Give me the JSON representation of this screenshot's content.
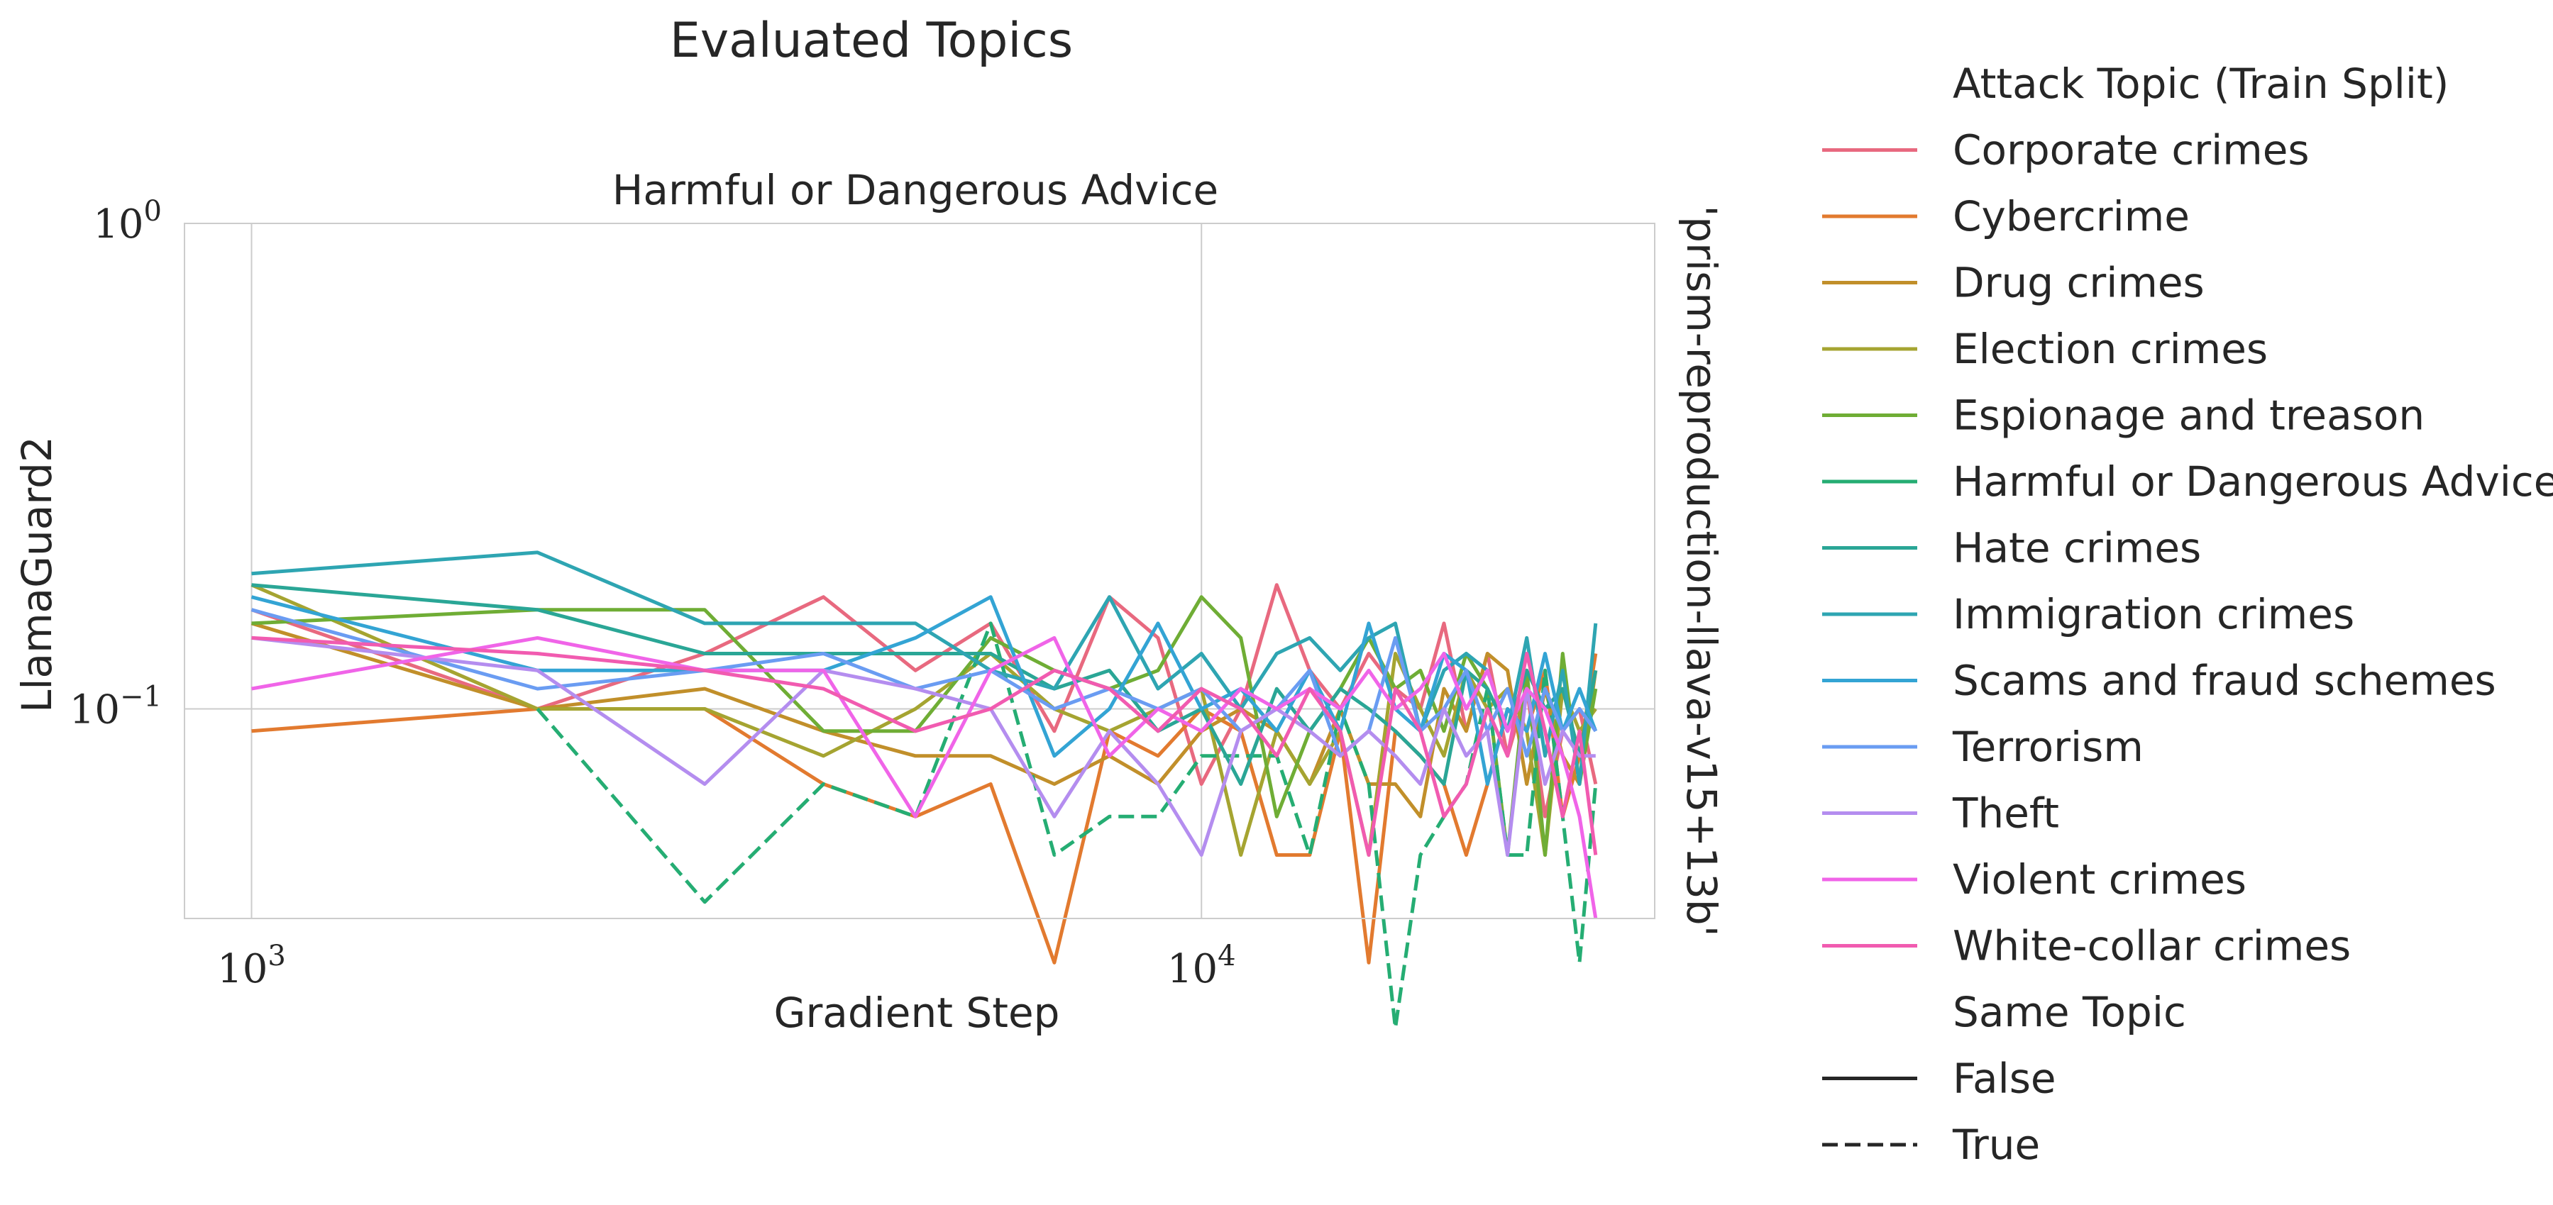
{
  "chart_data": {
    "type": "line",
    "suptitle": "Evaluated Topics",
    "title": "Harmful or Dangerous Advice",
    "xlabel": "Gradient Step",
    "ylabel": "LlamaGuard2",
    "row_label": "'prism-reproduction-llava-v15+13b'",
    "x_scale": "log",
    "y_scale": "log",
    "xlim": [
      850,
      30000
    ],
    "ylim": [
      0.037,
      1.0
    ],
    "grid": true,
    "x_ticks": [
      {
        "base": "10",
        "exp": "3",
        "value": 1000
      },
      {
        "base": "10",
        "exp": "4",
        "value": 10000
      }
    ],
    "y_ticks": [
      {
        "base": "10",
        "exp": "0",
        "value": 1.0
      },
      {
        "base": "10",
        "exp": "−1",
        "value": 0.1
      }
    ],
    "legend": {
      "placement": "outside-right",
      "hue_title": "Attack Topic (Train Split)",
      "style_title": "Same Topic",
      "style_entries": [
        {
          "label": "False",
          "dash": "solid"
        },
        {
          "label": "True",
          "dash": "dashed"
        }
      ]
    },
    "x": [
      1000,
      2000,
      3000,
      4000,
      5000,
      6000,
      7000,
      8000,
      9000,
      10000,
      11000,
      12000,
      13000,
      14000,
      15000,
      16000,
      17000,
      18000,
      19000,
      20000,
      21000,
      22000,
      23000,
      24000,
      25000,
      26000
    ],
    "series": [
      {
        "name": "Corporate crimes",
        "color": "#e8697f",
        "dash": "solid",
        "values": [
          0.16,
          0.1,
          0.13,
          0.17,
          0.12,
          0.15,
          0.09,
          0.17,
          0.14,
          0.07,
          0.1,
          0.18,
          0.12,
          0.1,
          0.13,
          0.11,
          0.1,
          0.15,
          0.09,
          0.13,
          0.08,
          0.11,
          0.06,
          0.09,
          0.1,
          0.07
        ]
      },
      {
        "name": "Cybercrime",
        "color": "#e27a2f",
        "dash": "solid",
        "values": [
          0.09,
          0.1,
          0.1,
          0.07,
          0.06,
          0.07,
          0.03,
          0.09,
          0.08,
          0.1,
          0.09,
          0.05,
          0.05,
          0.09,
          0.03,
          0.09,
          0.08,
          0.07,
          0.05,
          0.07,
          0.1,
          0.09,
          0.12,
          0.06,
          0.08,
          0.13
        ]
      },
      {
        "name": "Drug crimes",
        "color": "#c18f2a",
        "dash": "solid",
        "values": [
          0.15,
          0.1,
          0.11,
          0.09,
          0.08,
          0.08,
          0.07,
          0.08,
          0.07,
          0.09,
          0.1,
          0.09,
          0.07,
          0.1,
          0.07,
          0.07,
          0.06,
          0.11,
          0.09,
          0.13,
          0.12,
          0.07,
          0.11,
          0.08,
          0.07,
          0.12
        ]
      },
      {
        "name": "Election crimes",
        "color": "#a5a431",
        "dash": "solid",
        "values": [
          0.18,
          0.1,
          0.1,
          0.08,
          0.1,
          0.13,
          0.1,
          0.09,
          0.1,
          0.11,
          0.05,
          0.09,
          0.07,
          0.09,
          0.05,
          0.13,
          0.1,
          0.08,
          0.12,
          0.1,
          0.11,
          0.09,
          0.05,
          0.11,
          0.09,
          0.1
        ]
      },
      {
        "name": "Espionage and treason",
        "color": "#6fad35",
        "dash": "solid",
        "values": [
          0.15,
          0.16,
          0.16,
          0.09,
          0.09,
          0.14,
          0.12,
          0.11,
          0.12,
          0.17,
          0.14,
          0.06,
          0.09,
          0.11,
          0.14,
          0.11,
          0.12,
          0.09,
          0.13,
          0.11,
          0.05,
          0.12,
          0.05,
          0.13,
          0.07,
          0.11
        ]
      },
      {
        "name": "Harmful or Dangerous Advice",
        "color": "#25ad73",
        "dash": "dashed",
        "values": [
          null,
          0.1,
          0.04,
          0.07,
          0.06,
          0.15,
          0.05,
          0.06,
          0.06,
          0.08,
          0.08,
          0.08,
          0.05,
          0.1,
          0.07,
          0.022,
          0.05,
          0.06,
          0.07,
          0.11,
          0.05,
          0.05,
          0.12,
          0.06,
          0.03,
          0.07
        ]
      },
      {
        "name": "Hate crimes",
        "color": "#2aa696",
        "dash": "solid",
        "values": [
          0.18,
          0.16,
          0.13,
          0.13,
          0.13,
          0.13,
          0.11,
          0.12,
          0.09,
          0.1,
          0.07,
          0.11,
          0.09,
          0.11,
          0.1,
          0.09,
          0.08,
          0.07,
          0.12,
          0.11,
          0.09,
          0.12,
          0.1,
          0.11,
          0.08,
          0.12
        ]
      },
      {
        "name": "Immigration crimes",
        "color": "#2ea5b2",
        "dash": "solid",
        "values": [
          0.19,
          0.21,
          0.15,
          0.15,
          0.15,
          0.12,
          0.11,
          0.17,
          0.11,
          0.13,
          0.1,
          0.13,
          0.14,
          0.12,
          0.14,
          0.15,
          0.09,
          0.12,
          0.13,
          0.12,
          0.09,
          0.14,
          0.08,
          0.12,
          0.07,
          0.15
        ]
      },
      {
        "name": "Scams and fraud schemes",
        "color": "#33a4d4",
        "dash": "solid",
        "values": [
          0.17,
          0.12,
          0.12,
          0.12,
          0.14,
          0.17,
          0.08,
          0.1,
          0.15,
          0.1,
          0.11,
          0.09,
          0.12,
          0.09,
          0.15,
          0.1,
          0.09,
          0.13,
          0.12,
          0.07,
          0.1,
          0.09,
          0.13,
          0.09,
          0.11,
          0.09
        ]
      },
      {
        "name": "Terrorism",
        "color": "#6a9cf2",
        "dash": "solid",
        "values": [
          0.16,
          0.11,
          0.12,
          0.13,
          0.11,
          0.12,
          0.1,
          0.11,
          0.1,
          0.11,
          0.09,
          0.1,
          0.12,
          0.08,
          0.09,
          0.14,
          0.09,
          0.1,
          0.12,
          0.09,
          0.11,
          0.08,
          0.11,
          0.09,
          0.1,
          0.09
        ]
      },
      {
        "name": "Theft",
        "color": "#b48def",
        "dash": "solid",
        "values": [
          0.14,
          0.12,
          0.07,
          0.12,
          0.11,
          0.1,
          0.06,
          0.09,
          0.07,
          0.05,
          0.09,
          0.1,
          0.09,
          0.08,
          0.09,
          0.08,
          0.07,
          0.1,
          0.08,
          0.09,
          0.05,
          0.11,
          0.07,
          0.09,
          0.08,
          0.08
        ]
      },
      {
        "name": "Violent crimes",
        "color": "#f064e8",
        "dash": "solid",
        "values": [
          0.11,
          0.14,
          0.12,
          0.12,
          0.06,
          0.12,
          0.14,
          0.08,
          0.1,
          0.09,
          0.11,
          0.1,
          0.11,
          0.1,
          0.12,
          0.1,
          0.11,
          0.13,
          0.1,
          0.12,
          0.09,
          0.11,
          0.1,
          0.08,
          0.06,
          0.037
        ]
      },
      {
        "name": "White-collar crimes",
        "color": "#f15bb0",
        "dash": "solid",
        "values": [
          0.14,
          0.13,
          0.12,
          0.11,
          0.09,
          0.1,
          0.12,
          0.11,
          0.09,
          0.11,
          0.1,
          0.08,
          0.11,
          0.09,
          0.05,
          0.11,
          0.09,
          0.06,
          0.07,
          0.1,
          0.08,
          0.13,
          0.09,
          0.06,
          0.09,
          0.05
        ]
      }
    ]
  }
}
